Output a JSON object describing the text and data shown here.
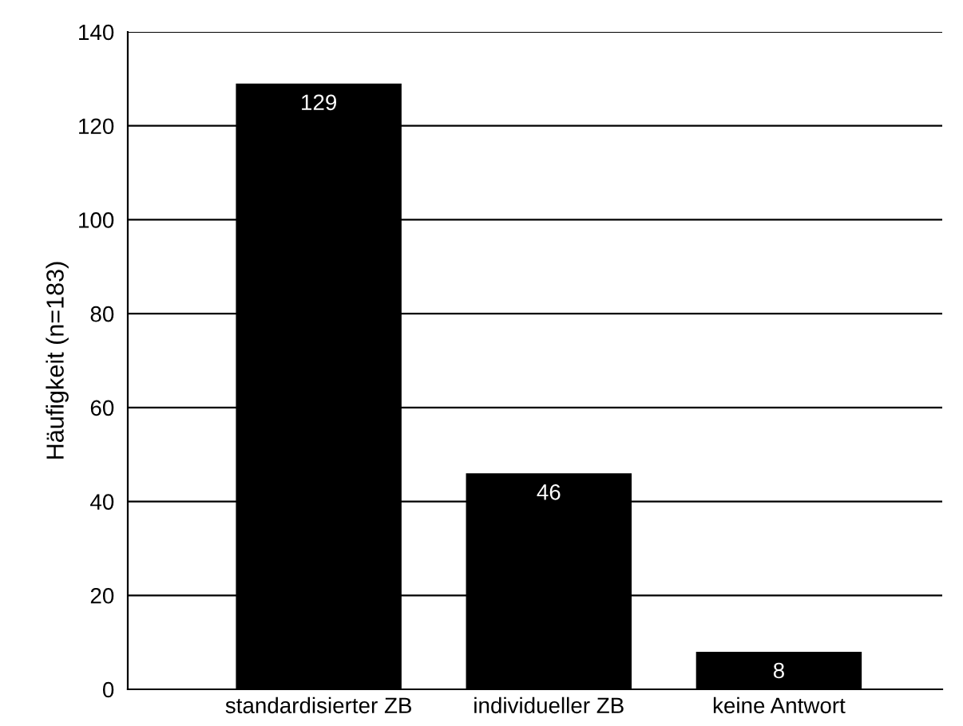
{
  "chart_data": {
    "type": "bar",
    "ylabel": "Häufigkeit (n=183)",
    "categories": [
      "standardisierter ZB",
      "individueller ZB",
      "keine Antwort"
    ],
    "values": [
      129,
      46,
      8
    ],
    "color": "#000000",
    "ylim": [
      0,
      140
    ],
    "yticks": [
      0,
      20,
      40,
      60,
      80,
      100,
      120,
      140
    ],
    "grid": "y",
    "data_labels": true
  }
}
